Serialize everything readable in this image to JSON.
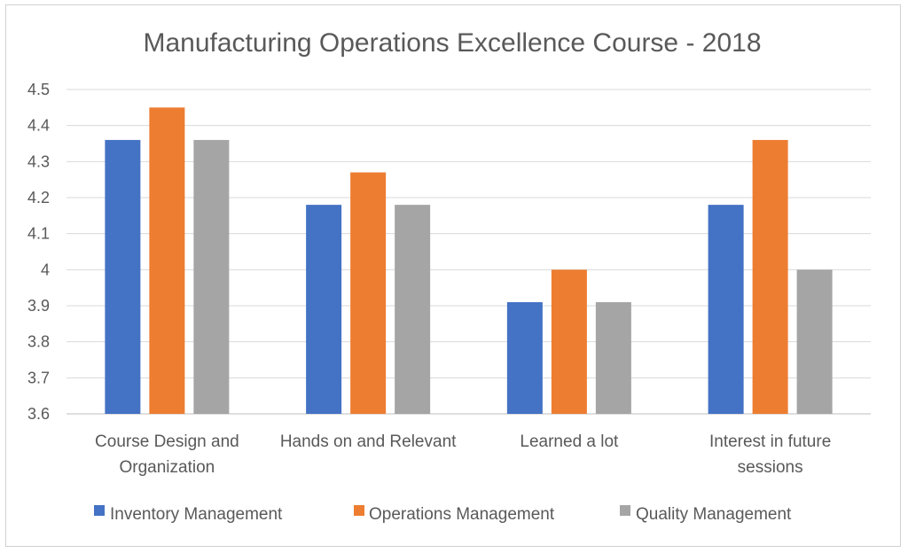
{
  "chart_data": {
    "type": "bar",
    "title": "Manufacturing Operations Excellence Course - 2018",
    "categories": [
      [
        "Course Design and",
        "Organization"
      ],
      [
        "Hands on and Relevant"
      ],
      [
        "Learned a lot"
      ],
      [
        "Interest in future",
        "sessions"
      ]
    ],
    "series": [
      {
        "name": "Inventory Management",
        "color": "#4472C4",
        "values": [
          4.36,
          4.18,
          3.91,
          4.18
        ]
      },
      {
        "name": "Operations Management",
        "color": "#ED7D31",
        "values": [
          4.45,
          4.27,
          4.0,
          4.36
        ]
      },
      {
        "name": "Quality Management",
        "color": "#A5A5A5",
        "values": [
          4.36,
          4.18,
          3.91,
          4.0
        ]
      }
    ],
    "ylim": [
      3.6,
      4.5
    ],
    "yticks": [
      "4.5",
      "4.4",
      "4.3",
      "4.2",
      "4.1",
      "4",
      "3.9",
      "3.8",
      "3.7",
      "3.6"
    ],
    "ytick_values": [
      4.5,
      4.4,
      4.3,
      4.2,
      4.1,
      4.0,
      3.9,
      3.8,
      3.7,
      3.6
    ],
    "grid": true,
    "legend": "bottom",
    "xlabel": "",
    "ylabel": ""
  }
}
